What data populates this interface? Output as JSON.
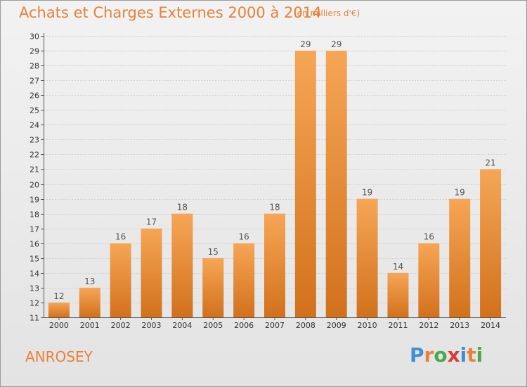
{
  "header": {
    "title": "Achats et Charges Externes 2000 à 2014",
    "subtitle": "(en milliers d'€)"
  },
  "commune": "ANROSEY",
  "brand": {
    "letters": [
      "P",
      "r",
      "o",
      "x",
      "i",
      "t",
      "i"
    ],
    "colors": [
      "#3f8fd4",
      "#e8813a",
      "#49a84c",
      "#d63b3b",
      "#3f8fd4",
      "#e8813a",
      "#49a84c"
    ]
  },
  "colors": {
    "bar_top": "#f6a656",
    "bar_bottom": "#d2711c",
    "accent": "#e8813a"
  },
  "chart_data": {
    "type": "bar",
    "title": "Achats et Charges Externes 2000 à 2014",
    "subtitle": "(en milliers d'€)",
    "xlabel": "",
    "ylabel": "",
    "categories": [
      "2000",
      "2001",
      "2002",
      "2003",
      "2004",
      "2005",
      "2006",
      "2007",
      "2008",
      "2009",
      "2010",
      "2011",
      "2012",
      "2013",
      "2014"
    ],
    "values": [
      12,
      13,
      16,
      17,
      18,
      15,
      16,
      18,
      29,
      29,
      19,
      14,
      16,
      19,
      21
    ],
    "ylim": [
      11,
      30
    ],
    "yticks": [
      11,
      12,
      13,
      14,
      15,
      16,
      17,
      18,
      19,
      20,
      21,
      22,
      23,
      24,
      25,
      26,
      27,
      28,
      29,
      30
    ],
    "grid": true,
    "data_labels": true
  }
}
